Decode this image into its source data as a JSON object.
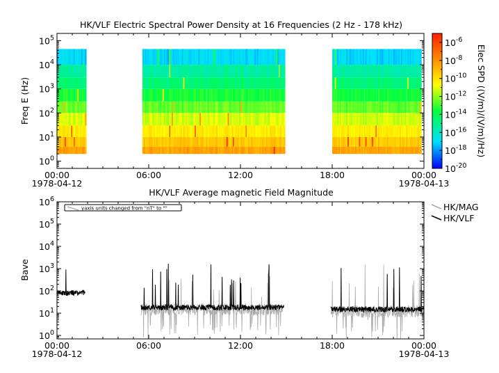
{
  "chart_data": [
    {
      "type": "heatmap",
      "title": "HK/VLF  Electric Spectral Power Density at 16 Frequencies (2 Hz - 178 kHz)",
      "ylabel": "Freq E (Hz)",
      "y_scale": "log",
      "ylim": [
        0.5,
        200000
      ],
      "y_ticks": [
        {
          "b": "10",
          "e": "0"
        },
        {
          "b": "10",
          "e": "1"
        },
        {
          "b": "10",
          "e": "2"
        },
        {
          "b": "10",
          "e": "3"
        },
        {
          "b": "10",
          "e": "4"
        },
        {
          "b": "10",
          "e": "5"
        }
      ],
      "xlim": [
        "1978-04-12T00:00",
        "1978-04-13T00:00"
      ],
      "x_ticks": [
        {
          "time": "00:00",
          "date": "1978-04-12"
        },
        {
          "time": "06:00",
          "date": ""
        },
        {
          "time": "12:00",
          "date": ""
        },
        {
          "time": "18:00",
          "date": ""
        },
        {
          "time": "00:00",
          "date": "1978-04-13"
        }
      ],
      "frequency_range_hz": [
        2,
        178000
      ],
      "data_segments": [
        {
          "start": "00:00",
          "end": "01:55"
        },
        {
          "start": "05:35",
          "end": "14:55"
        },
        {
          "start": "18:00",
          "end": "23:50"
        }
      ],
      "colorbar": {
        "label": "Elec SPD ((V/m)/(V/m)/Hz)",
        "scale": "log",
        "range": [
          1e-20,
          1e-05
        ],
        "ticks": [
          {
            "b": "10",
            "e": "-6"
          },
          {
            "b": "10",
            "e": "-8"
          },
          {
            "b": "10",
            "e": "-10"
          },
          {
            "b": "10",
            "e": "-12"
          },
          {
            "b": "10",
            "e": "-14"
          },
          {
            "b": "10",
            "e": "-16"
          },
          {
            "b": "10",
            "e": "-18"
          },
          {
            "b": "10",
            "e": "-20"
          }
        ],
        "colors": [
          "#0000ff",
          "#00e0ff",
          "#00ff40",
          "#ffff00",
          "#ff9000",
          "#ff2000"
        ]
      },
      "spectrum_profile": {
        "band_upper_freq_hz": [
          4,
          10,
          30,
          100,
          300,
          1000,
          3000,
          10000,
          45000
        ],
        "log10_spd": [
          -8.5,
          -9.5,
          -10.5,
          -11.5,
          -12.8,
          -13.8,
          -14.8,
          -15.5,
          -17
        ]
      }
    },
    {
      "type": "line",
      "title": "HK/VLF  Average magnetic Field Magnitude",
      "ylabel": "Bave",
      "y_scale": "log",
      "ylim": [
        0.7,
        1000000
      ],
      "y_ticks": [
        {
          "b": "10",
          "e": "0"
        },
        {
          "b": "10",
          "e": "1"
        },
        {
          "b": "10",
          "e": "2"
        },
        {
          "b": "10",
          "e": "3"
        },
        {
          "b": "10",
          "e": "4"
        },
        {
          "b": "10",
          "e": "5"
        },
        {
          "b": "10",
          "e": "6"
        }
      ],
      "xlim": [
        "1978-04-12T00:00",
        "1978-04-13T00:00"
      ],
      "x_ticks": [
        {
          "time": "00:00",
          "date": "1978-04-12"
        },
        {
          "time": "06:00",
          "date": ""
        },
        {
          "time": "12:00",
          "date": ""
        },
        {
          "time": "18:00",
          "date": ""
        },
        {
          "time": "00:00",
          "date": "1978-04-13"
        }
      ],
      "annotation": "yaxis units changed from \"nT\" to \"\"",
      "legend_position": "top-right, outside",
      "series": [
        {
          "name": "HK/MAG",
          "color": "#aaaaaa",
          "segments": [
            {
              "start": "05:30",
              "end": "14:45",
              "base": 15
            },
            {
              "start": "17:55",
              "end": "23:58",
              "base": 12
            }
          ]
        },
        {
          "name": "HK/VLF",
          "color": "#000000",
          "segments": [
            {
              "start": "00:00",
              "end": "01:50",
              "base": 80
            },
            {
              "start": "05:30",
              "end": "14:50",
              "base": 18
            },
            {
              "start": "17:55",
              "end": "23:58",
              "base": 15
            }
          ]
        }
      ]
    }
  ]
}
